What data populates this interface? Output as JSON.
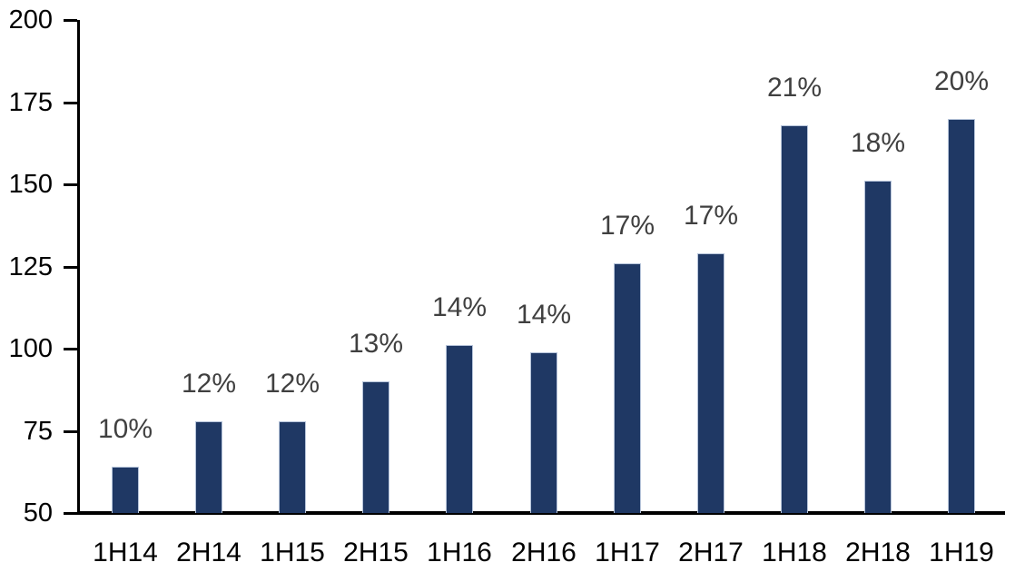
{
  "chart_data": {
    "type": "bar",
    "title": "",
    "xlabel": "",
    "ylabel": "",
    "categories": [
      "1H14",
      "2H14",
      "1H15",
      "2H15",
      "1H16",
      "2H16",
      "1H17",
      "2H17",
      "1H18",
      "2H18",
      "1H19"
    ],
    "values": [
      64,
      78,
      78,
      90,
      101,
      99,
      126,
      129,
      168,
      151,
      170
    ],
    "bar_labels": [
      "10%",
      "12%",
      "12%",
      "13%",
      "14%",
      "14%",
      "17%",
      "17%",
      "21%",
      "18%",
      "20%"
    ],
    "ylim": [
      50,
      200
    ],
    "yticks": [
      50,
      75,
      100,
      125,
      150,
      175,
      200
    ],
    "grid": false,
    "legend": false,
    "bar_color": "#1f3864",
    "bar_edge_color": "#b6c4da",
    "value_label_color": "#404040",
    "axis_color": "#000000"
  }
}
